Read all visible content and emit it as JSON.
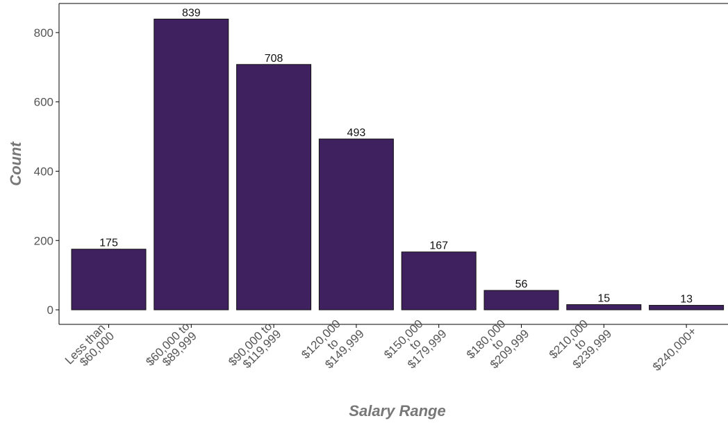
{
  "chart_data": {
    "type": "bar",
    "x_label": "Salary Range",
    "y_label": "Count",
    "categories": [
      "Less than\n$60,000",
      "$60,000 to\n$89,999",
      "$90,000 to\n$119,999",
      "$120,000\nto\n$149,999",
      "$150,000\nto\n$179,999",
      "$180,000\nto\n$209,999",
      "$210,000\nto\n$239,999",
      "$240,000+"
    ],
    "values": [
      175,
      839,
      708,
      493,
      167,
      56,
      15,
      13
    ],
    "color": "#3e215e",
    "ylim": [
      -42,
      884
    ],
    "yticks": [
      0,
      200,
      400,
      600,
      800
    ],
    "grid": false
  }
}
